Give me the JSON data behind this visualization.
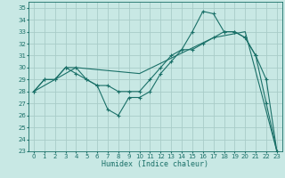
{
  "title": "",
  "xlabel": "Humidex (Indice chaleur)",
  "ylabel": "",
  "xlim": [
    -0.5,
    23.5
  ],
  "ylim": [
    23,
    35.5
  ],
  "yticks": [
    23,
    24,
    25,
    26,
    27,
    28,
    29,
    30,
    31,
    32,
    33,
    34,
    35
  ],
  "xticks": [
    0,
    1,
    2,
    3,
    4,
    5,
    6,
    7,
    8,
    9,
    10,
    11,
    12,
    13,
    14,
    15,
    16,
    17,
    18,
    19,
    20,
    21,
    22,
    23
  ],
  "bg_color": "#c8e8e4",
  "plot_bg_color": "#c8e8e4",
  "line_color": "#1a7068",
  "grid_color": "#a8ccc8",
  "line1_x": [
    0,
    1,
    2,
    3,
    4,
    5,
    6,
    7,
    8,
    9,
    10,
    11,
    12,
    13,
    14,
    15,
    16,
    17,
    18,
    19,
    20,
    21,
    22,
    23
  ],
  "line1_y": [
    28.0,
    29.0,
    29.0,
    30.0,
    30.0,
    29.0,
    28.5,
    26.5,
    26.0,
    27.5,
    27.5,
    28.0,
    29.5,
    30.5,
    31.5,
    33.0,
    34.7,
    34.5,
    33.0,
    33.0,
    32.5,
    31.0,
    27.0,
    23.0
  ],
  "line2_x": [
    0,
    1,
    2,
    3,
    4,
    5,
    6,
    7,
    8,
    9,
    10,
    11,
    12,
    13,
    14,
    15,
    16,
    17,
    18,
    19,
    20,
    21,
    22,
    23
  ],
  "line2_y": [
    28.0,
    29.0,
    29.0,
    30.0,
    29.5,
    29.0,
    28.5,
    28.5,
    28.0,
    28.0,
    28.0,
    29.0,
    30.0,
    31.0,
    31.5,
    31.5,
    32.0,
    32.5,
    33.0,
    33.0,
    32.5,
    31.0,
    29.0,
    23.0
  ],
  "line3_x": [
    0,
    4,
    10,
    17,
    20,
    23
  ],
  "line3_y": [
    28.0,
    30.0,
    29.5,
    32.5,
    33.0,
    23.0
  ]
}
